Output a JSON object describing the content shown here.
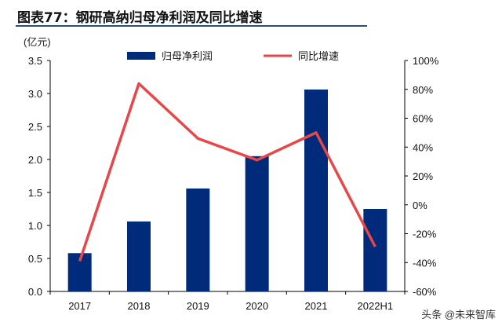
{
  "title": "图表77：钢研高纳归母净利润及同比增速",
  "watermark": "头条 @未来智库",
  "chart_data": {
    "type": "bar+line",
    "title": "图表77：钢研高纳归母净利润及同比增速",
    "left_unit": "(亿元)",
    "categories": [
      "2017",
      "2018",
      "2019",
      "2020",
      "2021",
      "2022H1"
    ],
    "series": [
      {
        "name": "归母净利润",
        "type": "bar",
        "axis": "left",
        "color": "#002a7a",
        "values": [
          0.58,
          1.06,
          1.56,
          2.05,
          3.06,
          1.25
        ]
      },
      {
        "name": "同比增速",
        "type": "line",
        "axis": "right",
        "color": "#e8474a",
        "values": [
          -39,
          84,
          46,
          31,
          50,
          -29
        ]
      }
    ],
    "ylim_left": [
      0,
      3.5
    ],
    "yticks_left": [
      "0.0",
      "0.5",
      "1.0",
      "1.5",
      "2.0",
      "2.5",
      "3.0",
      "3.5"
    ],
    "ylim_right": [
      -60,
      100
    ],
    "yticks_right": [
      "-60%",
      "-40%",
      "-20%",
      "0%",
      "20%",
      "40%",
      "60%",
      "80%",
      "100%"
    ],
    "legend": "top",
    "grid": false
  }
}
